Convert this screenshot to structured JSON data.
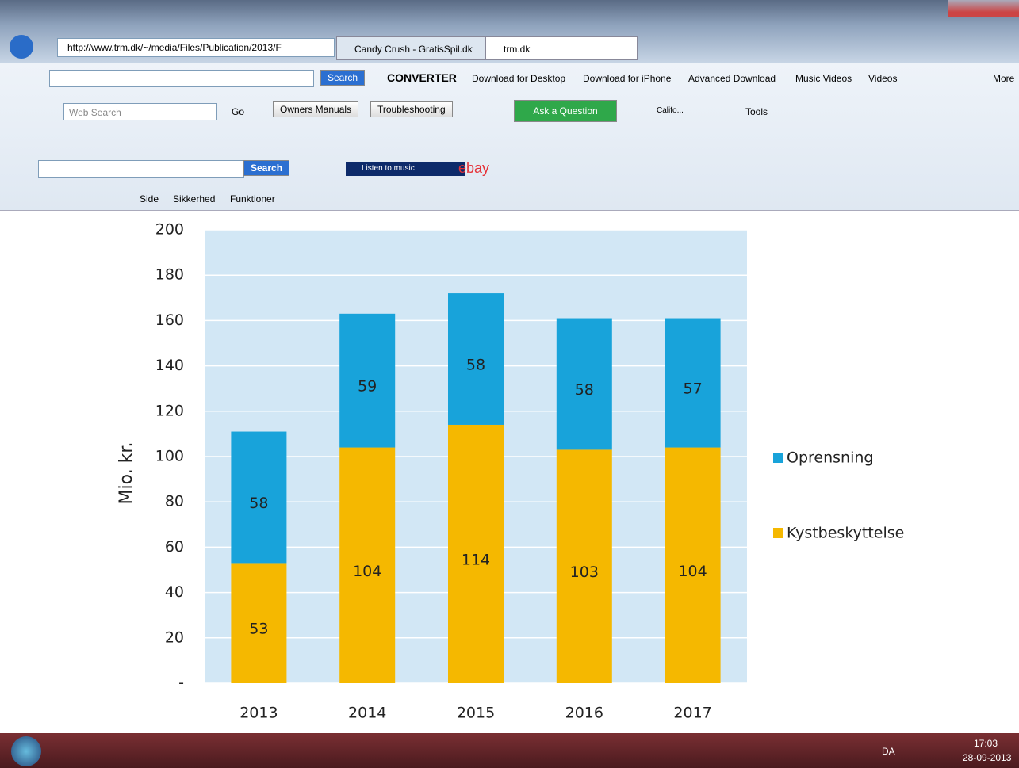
{
  "browser": {
    "address": "http://www.trm.dk/~/media/Files/Publication/2013/F",
    "tabs": [
      "Candy Crush - GratisSpil.dk",
      "trm.dk"
    ],
    "toolbar1": [
      "Search",
      "CONVERTER",
      "Download for Desktop",
      "Download for iPhone",
      "Advanced Download",
      "Music Videos",
      "Videos",
      "More"
    ],
    "toolbar2": [
      "Web Search",
      "Go",
      "Owners Manuals",
      "Troubleshooting",
      "Ask a Question",
      "Califo...",
      "Tools"
    ],
    "toolbar4": [
      "Search",
      "Listen to music",
      "ebay"
    ],
    "commandbar": [
      "Side",
      "Sikkerhed",
      "Funktioner"
    ]
  },
  "taskbar": {
    "language": "DA",
    "time": "17:03",
    "date": "28-09-2013"
  },
  "chart_data": {
    "type": "stacked_bar",
    "y_label": "Mio. kr.",
    "categories": [
      "2013",
      "2014",
      "2015",
      "2016",
      "2017"
    ],
    "series": [
      {
        "name": "Kystbeskyttelse",
        "color": "#f5b800",
        "values": [
          53,
          104,
          114,
          103,
          104
        ]
      },
      {
        "name": "Oprensning",
        "color": "#18a3da",
        "values": [
          58,
          59,
          58,
          58,
          57
        ]
      }
    ],
    "ylim": [
      0,
      200
    ],
    "yticks": [
      {
        "value": 0,
        "label": "-"
      },
      20,
      40,
      60,
      80,
      100,
      120,
      140,
      160,
      180,
      200
    ],
    "grid": true,
    "legend": "right",
    "plot_background": "#d2e7f5"
  }
}
